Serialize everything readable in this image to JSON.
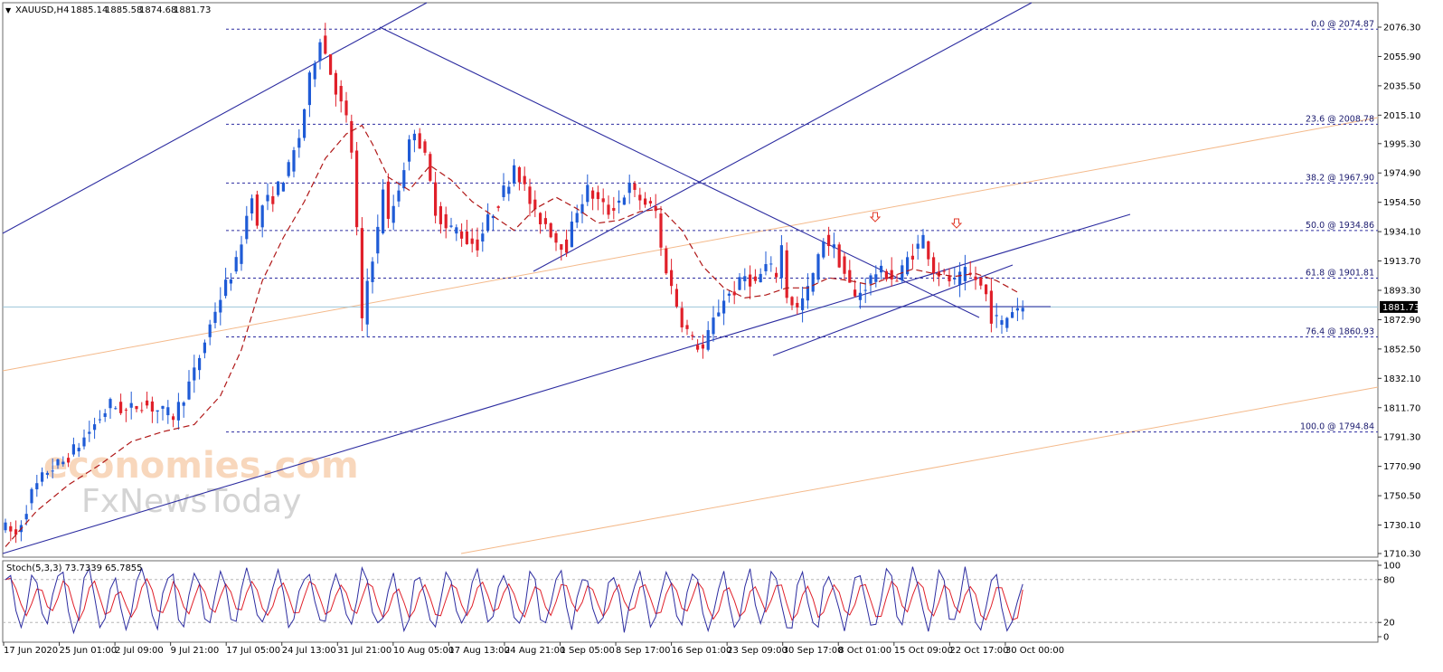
{
  "chart_data": [
    {
      "type": "candlestick",
      "header": {
        "symbol": "XAUUSD,H4",
        "open": "1885.14",
        "high": "1885.58",
        "low": "1874.68",
        "close": "1881.73"
      },
      "current_price": "1881.73",
      "y_ticks": [
        "2076.30",
        "2055.90",
        "2035.50",
        "2015.10",
        "1995.30",
        "1974.90",
        "1954.50",
        "1934.10",
        "1913.70",
        "1893.30",
        "1872.90",
        "1852.50",
        "1832.10",
        "1811.70",
        "1791.30",
        "1770.90",
        "1750.50",
        "1730.10",
        "1710.30"
      ],
      "ylim": [
        1705,
        2090
      ],
      "x_ticks": [
        "17 Jun 2020",
        "25 Jun 01:00",
        "2 Jul 09:00",
        "9 Jul 21:00",
        "17 Jul 05:00",
        "24 Jul 13:00",
        "31 Jul 21:00",
        "10 Aug 05:00",
        "17 Aug 13:00",
        "24 Aug 21:00",
        "1 Sep 05:00",
        "8 Sep 17:00",
        "16 Sep 01:00",
        "23 Sep 09:00",
        "30 Sep 17:00",
        "8 Oct 01:00",
        "15 Oct 09:00",
        "22 Oct 17:00",
        "30 Oct 00:00"
      ],
      "fibonacci_levels": [
        {
          "label": "0.0 @ 2074.87",
          "price": 2074.87
        },
        {
          "label": "23.6 @ 2008.78",
          "price": 2008.78
        },
        {
          "label": "38.2 @ 1967.90",
          "price": 1967.9
        },
        {
          "label": "50.0 @ 1934.86",
          "price": 1934.86
        },
        {
          "label": "61.8 @ 1901.81",
          "price": 1901.81
        },
        {
          "label": "76.4 @ 1860.93",
          "price": 1860.93
        },
        {
          "label": "100.0 @ 1794.84",
          "price": 1794.84
        }
      ],
      "price_path": [
        [
          0,
          1730
        ],
        [
          3,
          1723
        ],
        [
          6,
          1752
        ],
        [
          9,
          1768
        ],
        [
          12,
          1774
        ],
        [
          15,
          1786
        ],
        [
          18,
          1800
        ],
        [
          21,
          1814
        ],
        [
          24,
          1809
        ],
        [
          27,
          1815
        ],
        [
          30,
          1810
        ],
        [
          33,
          1806
        ],
        [
          35,
          1820
        ],
        [
          37,
          1836
        ],
        [
          39,
          1858
        ],
        [
          41,
          1880
        ],
        [
          43,
          1897
        ],
        [
          45,
          1912
        ],
        [
          47,
          1945
        ],
        [
          48,
          1962
        ],
        [
          49,
          1936
        ],
        [
          50,
          1953
        ],
        [
          52,
          1958
        ],
        [
          54,
          1972
        ],
        [
          55,
          1978
        ],
        [
          57,
          2000
        ],
        [
          59,
          2040
        ],
        [
          61,
          2070
        ],
        [
          62,
          2058
        ],
        [
          63,
          2045
        ],
        [
          65,
          2022
        ],
        [
          66,
          2012
        ],
        [
          67,
          1990
        ],
        [
          68,
          1935
        ],
        [
          69,
          1870
        ],
        [
          70,
          1900
        ],
        [
          72,
          1935
        ],
        [
          73,
          1966
        ],
        [
          74,
          1940
        ],
        [
          76,
          1965
        ],
        [
          78,
          1995
        ],
        [
          79,
          2006
        ],
        [
          81,
          1985
        ],
        [
          83,
          1950
        ],
        [
          85,
          1936
        ],
        [
          87,
          1936
        ],
        [
          89,
          1928
        ],
        [
          91,
          1925
        ],
        [
          93,
          1942
        ],
        [
          95,
          1955
        ],
        [
          97,
          1970
        ],
        [
          98,
          1982
        ],
        [
          100,
          1964
        ],
        [
          102,
          1945
        ],
        [
          104,
          1940
        ],
        [
          106,
          1928
        ],
        [
          108,
          1924
        ],
        [
          110,
          1950
        ],
        [
          112,
          1963
        ],
        [
          114,
          1955
        ],
        [
          116,
          1948
        ],
        [
          118,
          1956
        ],
        [
          120,
          1965
        ],
        [
          121,
          1960
        ],
        [
          123,
          1954
        ],
        [
          125,
          1948
        ],
        [
          126,
          1922
        ],
        [
          128,
          1895
        ],
        [
          130,
          1872
        ],
        [
          132,
          1858
        ],
        [
          134,
          1852
        ],
        [
          136,
          1872
        ],
        [
          138,
          1888
        ],
        [
          140,
          1893
        ],
        [
          142,
          1903
        ],
        [
          144,
          1898
        ],
        [
          146,
          1910
        ],
        [
          148,
          1905
        ],
        [
          149,
          1924
        ],
        [
          150,
          1890
        ],
        [
          152,
          1880
        ],
        [
          154,
          1893
        ],
        [
          156,
          1915
        ],
        [
          157,
          1930
        ],
        [
          159,
          1922
        ],
        [
          161,
          1905
        ],
        [
          163,
          1888
        ],
        [
          165,
          1897
        ],
        [
          167,
          1906
        ],
        [
          169,
          1905
        ],
        [
          171,
          1900
        ],
        [
          173,
          1915
        ],
        [
          175,
          1924
        ],
        [
          176,
          1930
        ],
        [
          178,
          1908
        ],
        [
          180,
          1903
        ],
        [
          182,
          1898
        ],
        [
          184,
          1905
        ],
        [
          186,
          1901
        ],
        [
          188,
          1890
        ],
        [
          189,
          1875
        ],
        [
          191,
          1870
        ],
        [
          193,
          1880
        ],
        [
          194,
          1881.73
        ]
      ],
      "moving_average_path": [
        [
          0,
          1715
        ],
        [
          6,
          1740
        ],
        [
          12,
          1758
        ],
        [
          18,
          1772
        ],
        [
          24,
          1788
        ],
        [
          30,
          1795
        ],
        [
          36,
          1800
        ],
        [
          41,
          1820
        ],
        [
          45,
          1852
        ],
        [
          49,
          1900
        ],
        [
          53,
          1930
        ],
        [
          57,
          1955
        ],
        [
          61,
          1985
        ],
        [
          65,
          2002
        ],
        [
          68,
          2008
        ],
        [
          70,
          1995
        ],
        [
          73,
          1972
        ],
        [
          77,
          1963
        ],
        [
          81,
          1980
        ],
        [
          85,
          1970
        ],
        [
          89,
          1955
        ],
        [
          93,
          1945
        ],
        [
          97,
          1935
        ],
        [
          101,
          1950
        ],
        [
          105,
          1958
        ],
        [
          109,
          1950
        ],
        [
          113,
          1940
        ],
        [
          117,
          1942
        ],
        [
          121,
          1948
        ],
        [
          125,
          1950
        ],
        [
          129,
          1935
        ],
        [
          133,
          1910
        ],
        [
          137,
          1895
        ],
        [
          141,
          1888
        ],
        [
          145,
          1890
        ],
        [
          149,
          1895
        ],
        [
          153,
          1895
        ],
        [
          157,
          1902
        ],
        [
          161,
          1900
        ],
        [
          165,
          1897
        ],
        [
          169,
          1903
        ],
        [
          173,
          1908
        ],
        [
          177,
          1905
        ],
        [
          181,
          1903
        ],
        [
          185,
          1905
        ],
        [
          189,
          1900
        ],
        [
          193,
          1892
        ]
      ],
      "stochastic": {
        "label": "Stoch(5,3,3) 73.7339 65.7855",
        "main": 73.7339,
        "signal": 65.7855,
        "y_ticks": [
          "100",
          "80",
          "20",
          "0"
        ],
        "levels": [
          20,
          80
        ]
      },
      "annotation_arrows": [
        "down-arrow-1",
        "down-arrow-2"
      ],
      "watermark": {
        "line1": "economies.com",
        "line2": "FxNewsToday"
      },
      "colors": {
        "bull_candle": "#1f5bd6",
        "bear_candle": "#e0202a",
        "moving_average": "#b01818",
        "trendline": "#2c2ca0",
        "fib_line": "#2c2ca0",
        "regression_channel": "#f4b98a",
        "current_price_line": "#9cc5d9",
        "stoch_main": "#2c2ca0",
        "stoch_signal": "#e0202a",
        "arrow": "#e23b2b"
      }
    }
  ]
}
